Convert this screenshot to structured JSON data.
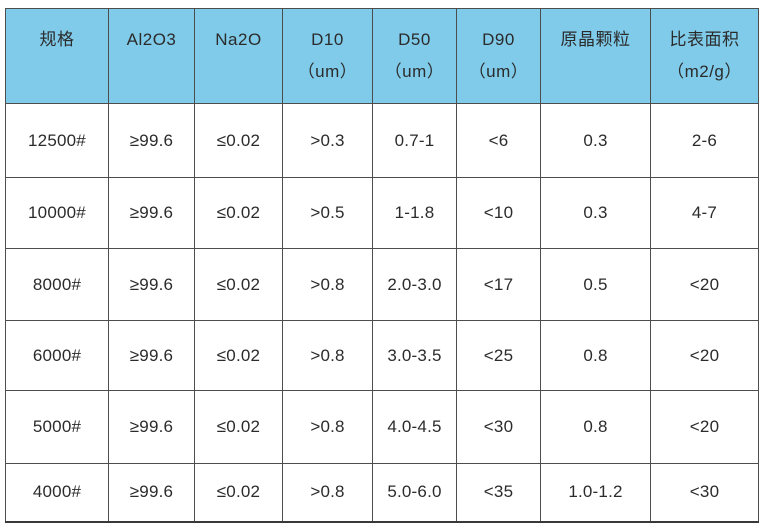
{
  "chart_data": {
    "type": "table",
    "title": "",
    "columns": [
      {
        "label": "规格",
        "sub": ""
      },
      {
        "label": "Al2O3",
        "sub": ""
      },
      {
        "label": "Na2O",
        "sub": ""
      },
      {
        "label": "D10",
        "sub": "（um）"
      },
      {
        "label": "D50",
        "sub": "（um）"
      },
      {
        "label": "D90",
        "sub": "（um）"
      },
      {
        "label": "原晶颗粒",
        "sub": ""
      },
      {
        "label": "比表面积",
        "sub": "（m2/g）"
      }
    ],
    "rows": [
      [
        "12500#",
        "≥99.6",
        "≤0.02",
        ">0.3",
        "0.7-1",
        "<6",
        "0.3",
        "2-6"
      ],
      [
        "10000#",
        "≥99.6",
        "≤0.02",
        ">0.5",
        "1-1.8",
        "<10",
        "0.3",
        "4-7"
      ],
      [
        "8000#",
        "≥99.6",
        "≤0.02",
        ">0.8",
        "2.0-3.0",
        "<17",
        "0.5",
        "<20"
      ],
      [
        "6000#",
        "≥99.6",
        "≤0.02",
        ">0.8",
        "3.0-3.5",
        "<25",
        "0.8",
        "<20"
      ],
      [
        "5000#",
        "≥99.6",
        "≤0.02",
        ">0.8",
        "4.0-4.5",
        "<30",
        "0.8",
        "<20"
      ],
      [
        "4000#",
        "≥99.6",
        "≤0.02",
        ">0.8",
        "5.0-6.0",
        "<35",
        "1.0-1.2",
        "<30"
      ]
    ],
    "grid": true,
    "legend": false
  },
  "colors": {
    "header_bg": "#7fcbe9",
    "border": "#4d4d4d",
    "text": "#2b2b2b",
    "page_bg": "#ffffff"
  }
}
